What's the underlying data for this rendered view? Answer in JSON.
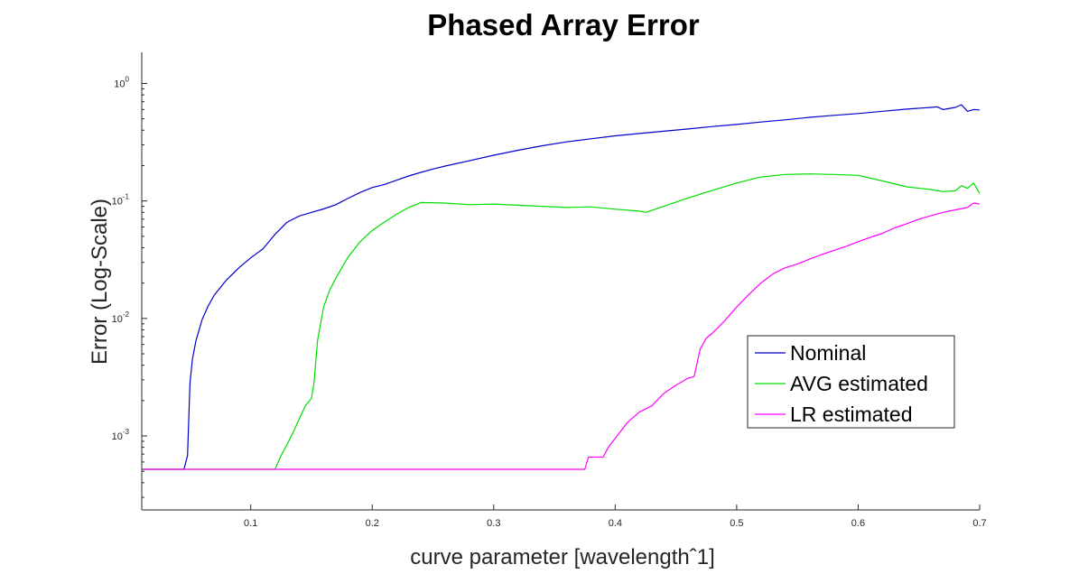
{
  "chart_data": {
    "type": "line",
    "title": "Phased Array Error",
    "xlabel": "curve parameter [wavelengthˆ1]",
    "ylabel": "Error (Log-Scale)",
    "xlim": [
      0.0103,
      0.7
    ],
    "ylim": [
      0.0002345,
      1.84
    ],
    "y_scale": "log",
    "grid": false,
    "legend_position": "lower-right",
    "x_ticks": [
      0.1,
      0.2,
      0.3,
      0.4,
      0.5,
      0.6,
      0.7
    ],
    "x_tick_labels": [
      "0.1",
      "0.2",
      "0.3",
      "0.4",
      "0.5",
      "0.6",
      "0.7"
    ],
    "y_ticks": [
      {
        "value": 1,
        "base": "10",
        "exp": "0"
      },
      {
        "value": 0.1,
        "base": "10",
        "exp": "-1"
      },
      {
        "value": 0.01,
        "base": "10",
        "exp": "-2"
      },
      {
        "value": 0.001,
        "base": "10",
        "exp": "-3"
      }
    ],
    "series": [
      {
        "name": "Nominal",
        "color": "#0000cc",
        "x": [
          0.01,
          0.045,
          0.048,
          0.05,
          0.052,
          0.055,
          0.06,
          0.065,
          0.07,
          0.08,
          0.09,
          0.1,
          0.11,
          0.12,
          0.13,
          0.14,
          0.15,
          0.16,
          0.17,
          0.18,
          0.19,
          0.2,
          0.21,
          0.22,
          0.23,
          0.24,
          0.25,
          0.26,
          0.28,
          0.3,
          0.32,
          0.34,
          0.36,
          0.38,
          0.4,
          0.42,
          0.44,
          0.46,
          0.48,
          0.5,
          0.52,
          0.54,
          0.56,
          0.58,
          0.6,
          0.62,
          0.64,
          0.66,
          0.665,
          0.67,
          0.68,
          0.685,
          0.69,
          0.695,
          0.7
        ],
        "y": [
          0.00052,
          0.00052,
          0.00068,
          0.0028,
          0.0045,
          0.0065,
          0.0098,
          0.0128,
          0.0158,
          0.0212,
          0.0268,
          0.0328,
          0.039,
          0.052,
          0.066,
          0.0745,
          0.08,
          0.0855,
          0.093,
          0.105,
          0.118,
          0.13,
          0.138,
          0.15,
          0.163,
          0.175,
          0.187,
          0.198,
          0.22,
          0.245,
          0.27,
          0.295,
          0.318,
          0.338,
          0.358,
          0.375,
          0.392,
          0.41,
          0.43,
          0.448,
          0.47,
          0.49,
          0.515,
          0.535,
          0.555,
          0.58,
          0.605,
          0.625,
          0.632,
          0.6,
          0.625,
          0.66,
          0.58,
          0.6,
          0.595
        ]
      },
      {
        "name": "AVG estimated",
        "color": "#00dd00",
        "x": [
          0.01,
          0.12,
          0.125,
          0.13,
          0.135,
          0.14,
          0.145,
          0.15,
          0.152,
          0.155,
          0.16,
          0.165,
          0.17,
          0.175,
          0.18,
          0.19,
          0.2,
          0.21,
          0.22,
          0.23,
          0.24,
          0.26,
          0.28,
          0.3,
          0.32,
          0.34,
          0.36,
          0.38,
          0.4,
          0.42,
          0.425,
          0.43,
          0.44,
          0.46,
          0.48,
          0.5,
          0.52,
          0.54,
          0.56,
          0.58,
          0.6,
          0.62,
          0.64,
          0.66,
          0.67,
          0.68,
          0.685,
          0.69,
          0.695,
          0.7
        ],
        "y": [
          0.00052,
          0.00052,
          0.00068,
          0.00085,
          0.00108,
          0.0014,
          0.0018,
          0.0021,
          0.0028,
          0.0065,
          0.0125,
          0.0175,
          0.022,
          0.027,
          0.033,
          0.045,
          0.056,
          0.066,
          0.077,
          0.088,
          0.097,
          0.096,
          0.093,
          0.094,
          0.092,
          0.09,
          0.088,
          0.089,
          0.085,
          0.082,
          0.08,
          0.083,
          0.09,
          0.106,
          0.123,
          0.142,
          0.16,
          0.168,
          0.17,
          0.168,
          0.165,
          0.148,
          0.132,
          0.125,
          0.12,
          0.122,
          0.135,
          0.128,
          0.142,
          0.116
        ]
      },
      {
        "name": "LR estimated",
        "color": "#ff00ff",
        "x": [
          0.01,
          0.375,
          0.378,
          0.38,
          0.39,
          0.395,
          0.4,
          0.41,
          0.42,
          0.43,
          0.44,
          0.45,
          0.46,
          0.465,
          0.47,
          0.475,
          0.48,
          0.49,
          0.5,
          0.51,
          0.52,
          0.53,
          0.54,
          0.55,
          0.56,
          0.57,
          0.58,
          0.59,
          0.6,
          0.61,
          0.62,
          0.63,
          0.64,
          0.65,
          0.66,
          0.67,
          0.68,
          0.69,
          0.695,
          0.7
        ],
        "y": [
          0.00052,
          0.00052,
          0.00066,
          0.00066,
          0.00066,
          0.00082,
          0.00095,
          0.0013,
          0.0016,
          0.0018,
          0.0023,
          0.0027,
          0.0031,
          0.0032,
          0.0055,
          0.0068,
          0.0075,
          0.0095,
          0.0125,
          0.016,
          0.02,
          0.024,
          0.027,
          0.029,
          0.032,
          0.035,
          0.038,
          0.041,
          0.045,
          0.049,
          0.053,
          0.059,
          0.064,
          0.07,
          0.075,
          0.08,
          0.084,
          0.088,
          0.096,
          0.094
        ]
      }
    ]
  }
}
